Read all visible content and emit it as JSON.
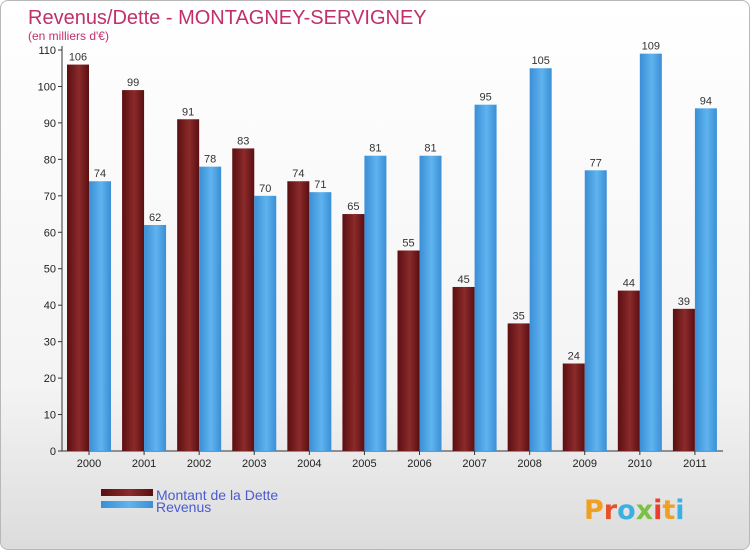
{
  "chart_data": {
    "type": "bar",
    "title": "Revenus/Dette - MONTAGNEY-SERVIGNEY",
    "subtitle": "(en milliers d'€)",
    "categories": [
      "2000",
      "2001",
      "2002",
      "2003",
      "2004",
      "2005",
      "2006",
      "2007",
      "2008",
      "2009",
      "2010",
      "2011"
    ],
    "series": [
      {
        "name": "Montant de la Dette",
        "color": "#7a1c1c",
        "values": [
          106,
          99,
          91,
          83,
          74,
          65,
          55,
          45,
          35,
          24,
          44,
          39
        ]
      },
      {
        "name": "Revenus",
        "color": "#4aa3e6",
        "values": [
          74,
          62,
          78,
          70,
          71,
          81,
          81,
          95,
          105,
          77,
          109,
          94
        ]
      }
    ],
    "ylim": [
      0,
      110
    ],
    "yticks": [
      0,
      10,
      20,
      30,
      40,
      50,
      60,
      70,
      80,
      90,
      100,
      110
    ],
    "grid": false,
    "legend_position": "bottom-left"
  },
  "brand": {
    "logo_text": "Proxiti"
  }
}
